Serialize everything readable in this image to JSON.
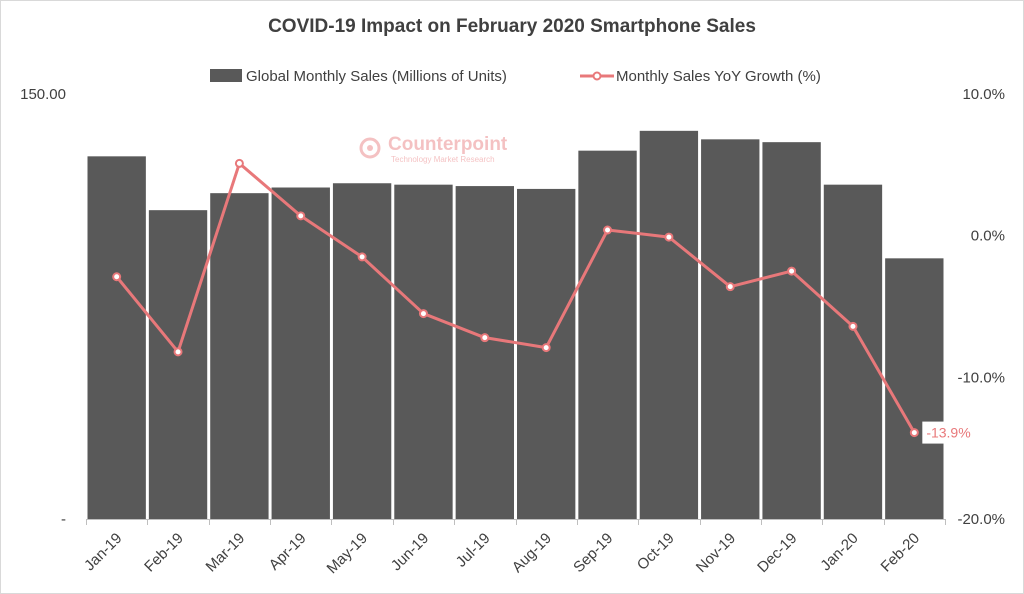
{
  "chart_data": {
    "type": "bar",
    "title": "COVID-19 Impact on February 2020 Smartphone Sales",
    "categories": [
      "Jan-19",
      "Feb-19",
      "Mar-19",
      "Apr-19",
      "May-19",
      "Jun-19",
      "Jul-19",
      "Aug-19",
      "Sep-19",
      "Oct-19",
      "Nov-19",
      "Dec-19",
      "Jan-20",
      "Feb-20"
    ],
    "series": [
      {
        "name": "Global Monthly Sales (Millions of Units)",
        "type": "bar",
        "axis": "left",
        "color": "#595959",
        "values": [
          128,
          109,
          115,
          117,
          118.5,
          118,
          117.5,
          116.5,
          130,
          137,
          134,
          133,
          118,
          92
        ]
      },
      {
        "name": "Monthly Sales YoY Growth (%)",
        "type": "line",
        "axis": "right",
        "color": "#e8787a",
        "values": [
          -2.9,
          -8.2,
          5.1,
          1.4,
          -1.5,
          -5.5,
          -7.2,
          -7.9,
          0.4,
          -0.1,
          -3.6,
          -2.5,
          -6.4,
          -13.9
        ]
      }
    ],
    "y_left": {
      "ylim": [
        0,
        150
      ],
      "ticks": [
        "150.00",
        "-"
      ]
    },
    "y_right": {
      "ylim": [
        -20,
        10
      ],
      "ticks": [
        "10.0%",
        "0.0%",
        "-10.0%",
        "-20.0%"
      ]
    },
    "data_labels": [
      {
        "category": "Feb-20",
        "text": "-13.9%"
      }
    ],
    "legend": "top-center",
    "grid": false
  },
  "watermark": {
    "name": "Counterpoint",
    "tagline": "Technology Market Research"
  }
}
